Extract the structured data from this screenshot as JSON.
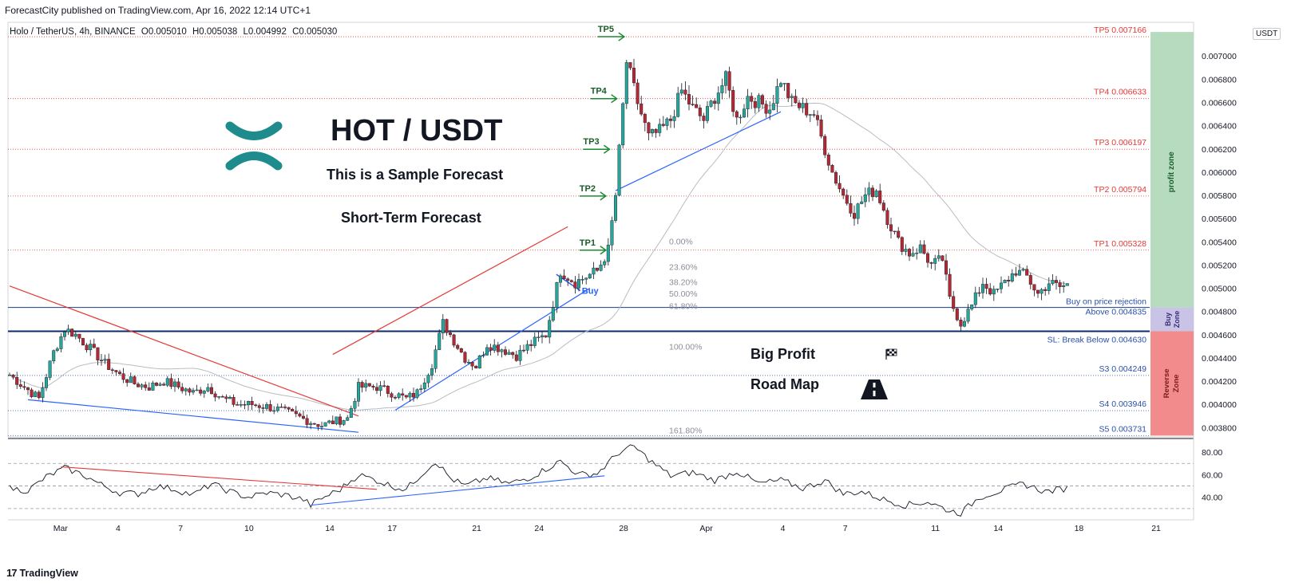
{
  "publisher_line": "ForecastCity published on TradingView.com, Apr 16, 2022 12:14 UTC+1",
  "legend": {
    "symbol": "Holo / TetherUS, 4h, BINANCE",
    "open": "O0.005010",
    "high": "H0.005038",
    "low": "L0.004992",
    "close": "C0.005030"
  },
  "currency_badge": "USDT",
  "footer_brand": "TradingView",
  "title": "HOT / USDT",
  "subtitle": "This is a Sample Forecast",
  "forecast_type": "Short-Term Forecast",
  "big_profit": "Big Profit",
  "road_map": "Road Map",
  "buy_label": "Buy",
  "colors": {
    "candle_up": "#26a69a",
    "candle_down": "#b22833",
    "target_red": "#e53935",
    "support_blue": "#2962ff",
    "arrow_green": "#1b8a2f",
    "profit_zone": "#b7dbbf",
    "buy_zone": "#c9c3e6",
    "reverse_zone": "#f28b8b",
    "logo_teal": "#1e8c8c"
  },
  "levels": {
    "tp": [
      {
        "name": "TP5",
        "label": "TP5 0.007166",
        "value": 0.007166
      },
      {
        "name": "TP4",
        "label": "TP4 0.006633",
        "value": 0.006633
      },
      {
        "name": "TP3",
        "label": "TP3 0.006197",
        "value": 0.006197
      },
      {
        "name": "TP2",
        "label": "TP2 0.005794",
        "value": 0.005794
      },
      {
        "name": "TP1",
        "label": "TP1 0.005328",
        "value": 0.005328
      }
    ],
    "buy_on_rejection": "Buy on price rejection",
    "above": {
      "label": "Above 0.004835",
      "value": 0.004835
    },
    "stop_loss": {
      "label": "SL: Break Below 0.004630",
      "value": 0.00463
    },
    "supports": [
      {
        "label": "S3 0.004249",
        "value": 0.004249
      },
      {
        "label": "S4 0.003946",
        "value": 0.003946
      },
      {
        "label": "S5 0.003731",
        "value": 0.003731
      }
    ]
  },
  "zones": {
    "profit": "profit zone",
    "buy_line1": "Buy",
    "buy_line2": "Zone",
    "reverse_line1": "Reverse",
    "reverse_line2": "Zone"
  },
  "fib_levels": [
    {
      "label": "0.00%",
      "value": 0.005405
    },
    {
      "label": "23.60%",
      "value": 0.005185
    },
    {
      "label": "38.20%",
      "value": 0.005055
    },
    {
      "label": "50.00%",
      "value": 0.004955
    },
    {
      "label": "61.80%",
      "value": 0.00485
    },
    {
      "label": "100.00%",
      "value": 0.0045
    },
    {
      "label": "161.80%",
      "value": 0.00378
    }
  ],
  "chart_data": {
    "type": "candlestick",
    "title": "HOT / USDT",
    "y_unit": "USDT",
    "ylim": [
      0.00372,
      0.00729
    ],
    "y_ticks": [
      "0.007000",
      "0.006800",
      "0.006600",
      "0.006400",
      "0.006200",
      "0.006000",
      "0.005800",
      "0.005600",
      "0.005400",
      "0.005200",
      "0.005000",
      "0.004800",
      "0.004600",
      "0.004400",
      "0.004200",
      "0.004000",
      "0.003800"
    ],
    "x_ticks": [
      "Mar",
      "4",
      "7",
      "10",
      "14",
      "17",
      "21",
      "24",
      "28",
      "Apr",
      "4",
      "7",
      "11",
      "14",
      "18",
      "21"
    ],
    "close_anchors": [
      [
        0,
        0.004255
      ],
      [
        4,
        0.00415
      ],
      [
        8,
        0.00405
      ],
      [
        12,
        0.00445
      ],
      [
        15,
        0.00465
      ],
      [
        18,
        0.0046
      ],
      [
        22,
        0.00448
      ],
      [
        26,
        0.00435
      ],
      [
        30,
        0.00425
      ],
      [
        34,
        0.00418
      ],
      [
        38,
        0.00415
      ],
      [
        42,
        0.0042
      ],
      [
        46,
        0.00415
      ],
      [
        50,
        0.0041
      ],
      [
        54,
        0.00415
      ],
      [
        58,
        0.00405
      ],
      [
        62,
        0.004
      ],
      [
        66,
        0.004
      ],
      [
        70,
        0.00398
      ],
      [
        74,
        0.00395
      ],
      [
        78,
        0.0039
      ],
      [
        82,
        0.00385
      ],
      [
        85,
        0.00382
      ],
      [
        88,
        0.00385
      ],
      [
        92,
        0.00388
      ],
      [
        95,
        0.00415
      ],
      [
        100,
        0.00415
      ],
      [
        104,
        0.0041
      ],
      [
        108,
        0.00405
      ],
      [
        111,
        0.0041
      ],
      [
        115,
        0.00435
      ],
      [
        118,
        0.0047
      ],
      [
        121,
        0.00455
      ],
      [
        124,
        0.0044
      ],
      [
        127,
        0.00433
      ],
      [
        130,
        0.00452
      ],
      [
        134,
        0.00448
      ],
      [
        138,
        0.00442
      ],
      [
        142,
        0.00452
      ],
      [
        146,
        0.0046
      ],
      [
        150,
        0.00515
      ],
      [
        154,
        0.00505
      ],
      [
        157,
        0.0051
      ],
      [
        160,
        0.00515
      ],
      [
        163,
        0.00533
      ],
      [
        165,
        0.0058
      ],
      [
        168,
        0.00695
      ],
      [
        171,
        0.0066
      ],
      [
        174,
        0.0063
      ],
      [
        177,
        0.00635
      ],
      [
        180,
        0.00645
      ],
      [
        183,
        0.0067
      ],
      [
        186,
        0.00655
      ],
      [
        189,
        0.00645
      ],
      [
        192,
        0.00665
      ],
      [
        195,
        0.0068
      ],
      [
        198,
        0.00645
      ],
      [
        201,
        0.00665
      ],
      [
        204,
        0.0066
      ],
      [
        207,
        0.00655
      ],
      [
        210,
        0.0068
      ],
      [
        213,
        0.0066
      ],
      [
        216,
        0.00655
      ],
      [
        219,
        0.0065
      ],
      [
        222,
        0.0062
      ],
      [
        224,
        0.006
      ],
      [
        227,
        0.0058
      ],
      [
        230,
        0.00565
      ],
      [
        233,
        0.0058
      ],
      [
        236,
        0.00585
      ],
      [
        239,
        0.0056
      ],
      [
        242,
        0.0054
      ],
      [
        245,
        0.0053
      ],
      [
        248,
        0.00535
      ],
      [
        251,
        0.0052
      ],
      [
        254,
        0.00525
      ],
      [
        256,
        0.0049
      ],
      [
        259,
        0.0047
      ],
      [
        262,
        0.00485
      ],
      [
        265,
        0.00505
      ],
      [
        268,
        0.00495
      ],
      [
        271,
        0.00505
      ],
      [
        274,
        0.00515
      ],
      [
        277,
        0.0051
      ],
      [
        280,
        0.00495
      ],
      [
        283,
        0.00505
      ],
      [
        286,
        0.00501
      ],
      [
        288,
        0.00503
      ]
    ],
    "overlays": {
      "falling_resistance": [
        [
          0,
          0.00502
        ],
        [
          95,
          0.0039
        ]
      ],
      "falling_support": [
        [
          5,
          0.00404
        ],
        [
          95,
          0.00376
        ]
      ],
      "rising_channel_top": [
        [
          88,
          0.00443
        ],
        [
          152,
          0.00553
        ]
      ],
      "rising_channel_bottom": [
        [
          105,
          0.00395
        ],
        [
          158,
          0.005
        ]
      ],
      "late_support": [
        [
          165,
          0.00584
        ],
        [
          210,
          0.00652
        ]
      ]
    },
    "rsi": {
      "ylim": [
        20,
        90
      ],
      "y_ticks": [
        "80.00",
        "60.00",
        "40.00"
      ],
      "guide_levels": [
        70,
        50,
        30
      ],
      "anchors": [
        [
          0,
          48
        ],
        [
          5,
          46
        ],
        [
          10,
          58
        ],
        [
          15,
          66
        ],
        [
          20,
          60
        ],
        [
          25,
          51
        ],
        [
          30,
          44
        ],
        [
          35,
          43
        ],
        [
          40,
          50
        ],
        [
          45,
          47
        ],
        [
          50,
          42
        ],
        [
          55,
          52
        ],
        [
          60,
          45
        ],
        [
          65,
          40
        ],
        [
          70,
          44
        ],
        [
          75,
          42
        ],
        [
          80,
          38
        ],
        [
          82,
          33
        ],
        [
          85,
          39
        ],
        [
          90,
          47
        ],
        [
          95,
          60
        ],
        [
          100,
          55
        ],
        [
          104,
          50
        ],
        [
          108,
          47
        ],
        [
          112,
          60
        ],
        [
          116,
          72
        ],
        [
          120,
          57
        ],
        [
          124,
          50
        ],
        [
          130,
          57
        ],
        [
          136,
          52
        ],
        [
          142,
          58
        ],
        [
          150,
          72
        ],
        [
          155,
          60
        ],
        [
          160,
          61
        ],
        [
          166,
          80
        ],
        [
          170,
          85
        ],
        [
          175,
          71
        ],
        [
          180,
          59
        ],
        [
          186,
          62
        ],
        [
          192,
          55
        ],
        [
          198,
          63
        ],
        [
          204,
          52
        ],
        [
          210,
          55
        ],
        [
          216,
          48
        ],
        [
          222,
          55
        ],
        [
          227,
          43
        ],
        [
          232,
          45
        ],
        [
          238,
          38
        ],
        [
          244,
          33
        ],
        [
          250,
          36
        ],
        [
          256,
          28
        ],
        [
          259,
          26
        ],
        [
          264,
          40
        ],
        [
          270,
          46
        ],
        [
          276,
          52
        ],
        [
          282,
          45
        ],
        [
          288,
          48
        ]
      ],
      "falling_trend": [
        [
          14,
          67
        ],
        [
          100,
          47
        ]
      ],
      "rising_trend": [
        [
          82,
          33
        ],
        [
          162,
          59
        ]
      ]
    }
  }
}
